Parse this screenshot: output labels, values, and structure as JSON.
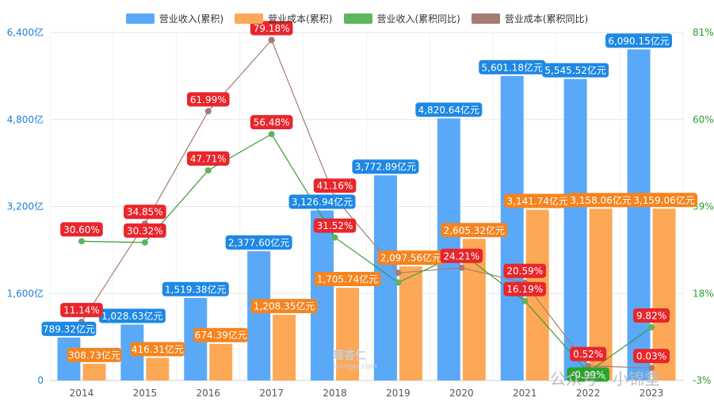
{
  "legend": [
    {
      "label": "营业收入(累积)",
      "color": "#5aa9f8"
    },
    {
      "label": "营业成本(累积)",
      "color": "#fda856"
    },
    {
      "label": "营业收入(累积同比)",
      "color": "#5db55d"
    },
    {
      "label": "营业成本(累积同比)",
      "color": "#a57c72"
    }
  ],
  "watermark": {
    "logo": "理杏仁",
    "logo_sub": "lixinger.com",
    "account": "公众号 · 小锦堂"
  },
  "chart_data": {
    "type": "bar",
    "categories": [
      "2014",
      "2015",
      "2016",
      "2017",
      "2018",
      "2019",
      "2020",
      "2021",
      "2022",
      "2023"
    ],
    "left_axis": {
      "min": 0,
      "max": 6400,
      "ticks": [
        0,
        1600,
        3200,
        4800,
        6400
      ],
      "tick_labels": [
        "0",
        "1,600亿",
        "3,200亿",
        "4,800亿",
        "6,400亿"
      ],
      "color": "#1e7fd6"
    },
    "right_axis": {
      "min": -3,
      "max": 81,
      "ticks": [
        -3,
        18,
        39,
        60,
        81
      ],
      "tick_labels": [
        "-3%",
        "18%",
        "39%",
        "60%",
        "81%"
      ],
      "color": "#2a9d2a"
    },
    "grid": true,
    "bar_series": [
      {
        "name": "营业收入(累积)",
        "color": "#5aa9f8",
        "label_color": "#1e88e5",
        "values": [
          789.32,
          1028.63,
          1519.38,
          2377.6,
          3126.94,
          3772.89,
          4820.64,
          5601.18,
          5545.52,
          6090.15
        ],
        "labels": [
          "789.32亿元",
          "1,028.63亿元",
          "1,519.38亿元",
          "2,377.60亿元",
          "3,126.94亿元",
          "3,772.89亿元",
          "4,820.64亿元",
          "5,601.18亿元",
          "5,545.52亿元",
          "6,090.15亿元"
        ]
      },
      {
        "name": "营业成本(累积)",
        "color": "#fda856",
        "label_color": "#f5841f",
        "values": [
          308.73,
          416.31,
          674.39,
          1208.35,
          1705.74,
          2097.56,
          2605.32,
          3141.74,
          3158.06,
          3159.06
        ],
        "labels": [
          "308.73亿元",
          "416.31亿元",
          "674.39亿元",
          "1,208.35亿元",
          "1,705.74亿元",
          "2,097.56亿元",
          "2,605.32亿元",
          "3,141.74亿元",
          "3,158.06亿元",
          "3,159.06亿元"
        ]
      }
    ],
    "line_series": [
      {
        "name": "营业收入(累积同比)",
        "color": "#3a9a3a",
        "dot_color": "#5db55d",
        "values": [
          null,
          30.32,
          47.71,
          56.48,
          31.52,
          20.66,
          27.77,
          16.19,
          -0.99,
          9.82
        ],
        "labels": [
          null,
          "30.32%",
          "47.71%",
          "56.48%",
          "31.52%",
          null,
          null,
          "16.19%",
          "-0.99%",
          "9.82%"
        ],
        "label_colors": [
          null,
          "red",
          "red",
          "red",
          "red",
          null,
          null,
          "red",
          "green",
          "red"
        ]
      },
      {
        "name": "营业成本(累积同比)",
        "color": "#a57c72",
        "dot_color": "#a57c72",
        "values": [
          null,
          34.85,
          61.99,
          79.18,
          41.16,
          22.97,
          24.21,
          20.59,
          0.52,
          0.03
        ],
        "labels": [
          null,
          "34.85%",
          "61.99%",
          "79.18%",
          "41.16%",
          null,
          "24.21%",
          "20.59%",
          "0.52%",
          "0.03%"
        ],
        "label_colors": [
          null,
          "red",
          "red",
          "red",
          "red",
          null,
          "red",
          "red",
          "red",
          "red"
        ]
      }
    ],
    "extra_points": [
      {
        "series": "营业收入(累积同比)",
        "category": "2014",
        "value": 30.6,
        "label": "30.60%",
        "color": "#5db55d"
      },
      {
        "series": "营业成本(累积同比)",
        "category": "2014",
        "value": 11.14,
        "label": "11.14%",
        "color": "#a57c72"
      }
    ]
  }
}
